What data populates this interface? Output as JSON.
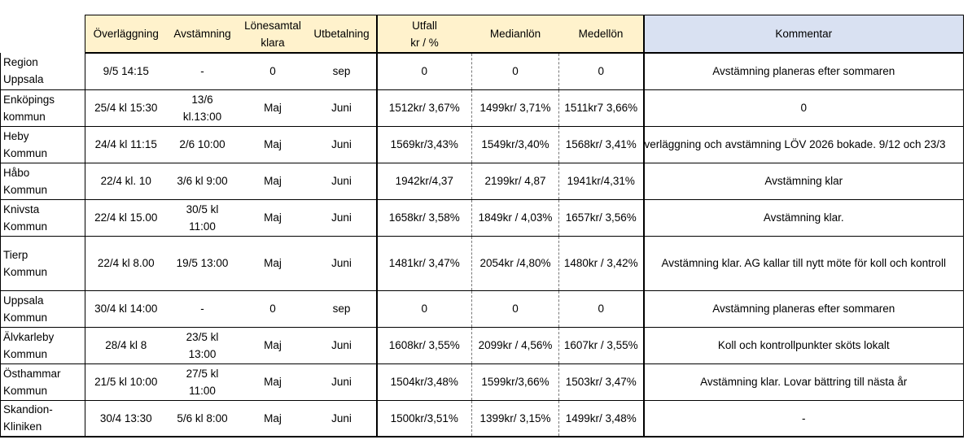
{
  "headers": [
    "Överläggning",
    "Avstämning",
    "Lönesamtal klara",
    "Utbetalning",
    "Utfall kr / %",
    "Medianlön",
    "Medellön",
    "Kommentar"
  ],
  "header_lines": {
    "lonesamtal": [
      "Lönesamtal",
      "klara"
    ],
    "utfall": [
      "Utfall",
      "kr / %"
    ]
  },
  "rows": [
    {
      "name": [
        "Region",
        "Uppsala"
      ],
      "overlaggning": "9/5 14:15",
      "avstamning": [
        "-"
      ],
      "lonesamtal": "0",
      "utbetalning": "sep",
      "utfall": "0",
      "median": "0",
      "medel": "0",
      "kommentar": "Avstämning planeras efter sommaren"
    },
    {
      "name": [
        "Enköpings",
        "kommun"
      ],
      "overlaggning": "25/4 kl 15:30",
      "avstamning": [
        "13/6",
        "kl.13:00"
      ],
      "lonesamtal": "Maj",
      "utbetalning": "Juni",
      "utfall": "1512kr/ 3,67%",
      "median": "1499kr/ 3,71%",
      "medel": "1511kr7 3,66%",
      "kommentar": "0"
    },
    {
      "name": [
        "Heby",
        "Kommun"
      ],
      "overlaggning": "24/4 kl 11:15",
      "avstamning": [
        "2/6 10:00"
      ],
      "lonesamtal": "Maj",
      "utbetalning": "Juni",
      "utfall": "1569kr/3,43%",
      "median": "1549kr/3,40%",
      "medel": "1568kr/ 3,41%",
      "kommentar": "verläggning och avstämning LÖV 2026 bokade. 9/12 och 23/3"
    },
    {
      "name": [
        "Håbo",
        "Kommun"
      ],
      "overlaggning": "22/4 kl. 10",
      "avstamning": [
        "3/6 kl 9:00"
      ],
      "lonesamtal": "Maj",
      "utbetalning": "Juni",
      "utfall": "1942kr/4,37",
      "median": "2199kr/ 4,87",
      "medel": "1941kr/4,31%",
      "kommentar": "Avstämning klar"
    },
    {
      "name": [
        "Knivsta",
        "Kommun"
      ],
      "overlaggning": "22/4 kl 15.00",
      "avstamning": [
        "30/5 kl",
        "11:00"
      ],
      "lonesamtal": "Maj",
      "utbetalning": "Juni",
      "utfall": "1658kr/ 3,58%",
      "median": "1849kr / 4,03%",
      "medel": "1657kr/ 3,56%",
      "kommentar": "Avstämning klar."
    },
    {
      "name": [
        "Tierp",
        "Kommun"
      ],
      "overlaggning": "22/4 kl 8.00",
      "avstamning": [
        "19/5 13:00"
      ],
      "lonesamtal": "Maj",
      "utbetalning": "Juni",
      "utfall": "1481kr/ 3,47%",
      "median": "2054kr /4,80%",
      "medel": "1480kr / 3,42%",
      "kommentar": "Avstämning klar. AG kallar till nytt möte för koll och kontroll"
    },
    {
      "name": [
        "Uppsala",
        "Kommun"
      ],
      "overlaggning": "30/4 kl  14:00",
      "avstamning": [
        "-"
      ],
      "lonesamtal": "0",
      "utbetalning": "sep",
      "utfall": "0",
      "median": "0",
      "medel": "0",
      "kommentar": "Avstämning planeras efter sommaren"
    },
    {
      "name": [
        "Älvkarleby",
        "Kommun"
      ],
      "overlaggning": "28/4 kl 8",
      "avstamning": [
        "23/5 kl",
        "13:00"
      ],
      "lonesamtal": "Maj",
      "utbetalning": "Juni",
      "utfall": "1608kr/ 3,55%",
      "median": "2099kr / 4,56%",
      "medel": "1607kr / 3,55%",
      "kommentar": "Koll och kontrollpunkter sköts lokalt"
    },
    {
      "name": [
        "Östhammar",
        "Kommun"
      ],
      "overlaggning": "21/5 kl 10:00",
      "avstamning": [
        "27/5 kl",
        "11:00"
      ],
      "lonesamtal": "Maj",
      "utbetalning": "Juni",
      "utfall": "1504kr/3,48%",
      "median": "1599kr/3,66%",
      "medel": "1503kr/ 3,47%",
      "kommentar": "Avstämning klar. Lovar bättring till nästa år"
    },
    {
      "name": [
        "Skandion-",
        "Kliniken"
      ],
      "overlaggning": "30/4 13:30",
      "avstamning": [
        "5/6 kl 8:00"
      ],
      "lonesamtal": "Maj",
      "utbetalning": "Juni",
      "utfall": "1500kr/3,51%",
      "median": "1399kr/ 3,15%",
      "medel": "1499kr/ 3,48%",
      "kommentar": "-"
    }
  ]
}
